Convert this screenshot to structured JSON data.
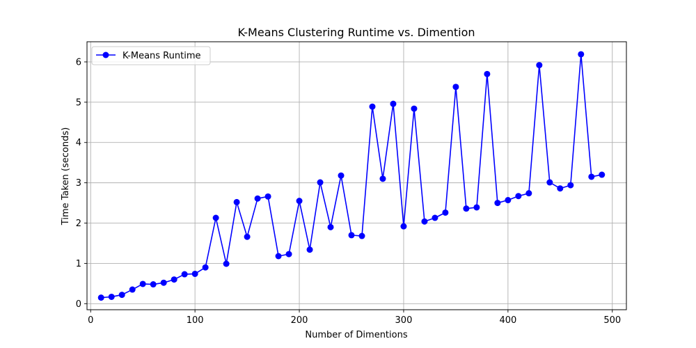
{
  "chart_data": {
    "type": "line",
    "title": "K-Means Clustering Runtime vs. Dimention",
    "xlabel": "Number of Dimentions",
    "ylabel": "Time Taken (seconds)",
    "xlim": [
      -3.5,
      513.5
    ],
    "ylim": [
      -0.15,
      6.5
    ],
    "xticks": [
      0,
      100,
      200,
      300,
      400,
      500
    ],
    "yticks": [
      0,
      1,
      2,
      3,
      4,
      5,
      6
    ],
    "grid": true,
    "legend": "top-left",
    "colors": {
      "series": "#0000ff",
      "grid": "#b0b0b0",
      "axes": "#000000"
    },
    "series": [
      {
        "name": "K-Means Runtime",
        "marker": "circle",
        "x": [
          10,
          20,
          30,
          40,
          50,
          60,
          70,
          80,
          90,
          100,
          110,
          120,
          130,
          140,
          150,
          160,
          170,
          180,
          190,
          200,
          210,
          220,
          230,
          240,
          250,
          260,
          270,
          280,
          290,
          300,
          310,
          320,
          330,
          340,
          350,
          360,
          370,
          380,
          390,
          400,
          410,
          420,
          430,
          440,
          450,
          460,
          470,
          480,
          490
        ],
        "y": [
          0.15,
          0.17,
          0.22,
          0.35,
          0.49,
          0.48,
          0.52,
          0.6,
          0.73,
          0.74,
          0.9,
          2.13,
          0.99,
          2.52,
          1.66,
          2.61,
          2.66,
          1.18,
          1.23,
          2.55,
          1.34,
          3.01,
          1.9,
          3.18,
          1.7,
          1.68,
          4.89,
          3.1,
          4.96,
          1.92,
          4.84,
          2.04,
          2.13,
          2.26,
          5.38,
          2.36,
          2.39,
          5.7,
          2.5,
          2.57,
          2.67,
          2.74,
          5.92,
          3.01,
          2.86,
          2.94,
          6.19,
          3.15,
          3.2
        ]
      }
    ]
  }
}
